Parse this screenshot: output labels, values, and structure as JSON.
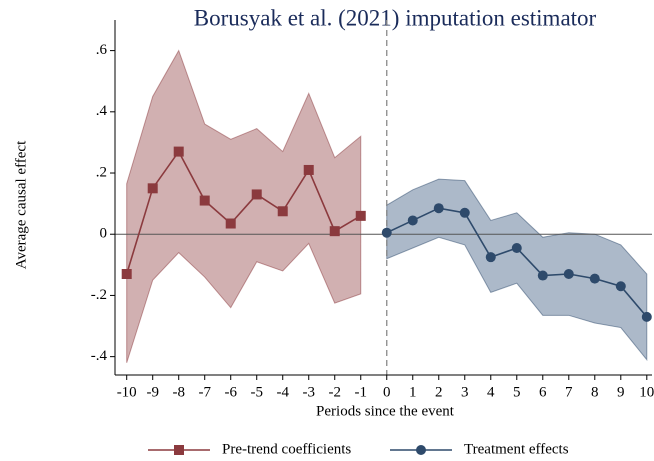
{
  "chart_data": {
    "type": "line",
    "title": "Borusyak et al. (2021) imputation estimator",
    "x_label": "Periods since the event",
    "y_label": "Average causal effect",
    "xlim": [
      -10.45,
      10.2
    ],
    "ylim": [
      -0.46,
      0.7
    ],
    "xticks": [
      -10,
      -9,
      -8,
      -7,
      -6,
      -5,
      -4,
      -3,
      -2,
      -1,
      0,
      1,
      2,
      3,
      4,
      5,
      6,
      7,
      8,
      9,
      10
    ],
    "yticks": [
      {
        "value": -0.4,
        "label": "-.4"
      },
      {
        "value": -0.2,
        "label": "-.2"
      },
      0,
      {
        "value": 0.2,
        "label": ".2"
      },
      {
        "value": 0.4,
        "label": ".4"
      },
      {
        "value": 0.6,
        "label": ".6"
      }
    ],
    "xline": 0,
    "yline": 0,
    "series": [
      {
        "name": "Pre-trend coefficients",
        "color": "#8b3a3e",
        "band_color": "#c9a2a3",
        "marker": "square",
        "x": [
          -10,
          -9,
          -8,
          -7,
          -6,
          -5,
          -4,
          -3,
          -2,
          -1
        ],
        "values": [
          -0.13,
          0.15,
          0.27,
          0.11,
          0.035,
          0.13,
          0.075,
          0.21,
          0.01,
          0.06
        ],
        "upper": [
          0.165,
          0.45,
          0.6,
          0.36,
          0.31,
          0.345,
          0.27,
          0.46,
          0.25,
          0.32
        ],
        "lower": [
          -0.42,
          -0.15,
          -0.06,
          -0.14,
          -0.24,
          -0.09,
          -0.12,
          -0.03,
          -0.225,
          -0.195
        ]
      },
      {
        "name": "Treatment effects",
        "color": "#2e4a6b",
        "band_color": "#9eadbf",
        "marker": "circle",
        "x": [
          0,
          1,
          2,
          3,
          4,
          5,
          6,
          7,
          8,
          9,
          10
        ],
        "values": [
          0.005,
          0.045,
          0.085,
          0.07,
          -0.075,
          -0.045,
          -0.135,
          -0.13,
          -0.145,
          -0.17,
          -0.27
        ],
        "upper": [
          0.095,
          0.145,
          0.18,
          0.175,
          0.045,
          0.07,
          -0.01,
          0.005,
          0.0,
          -0.035,
          -0.13
        ],
        "lower": [
          -0.08,
          -0.045,
          -0.01,
          -0.035,
          -0.19,
          -0.16,
          -0.265,
          -0.265,
          -0.29,
          -0.305,
          -0.41
        ]
      }
    ]
  }
}
